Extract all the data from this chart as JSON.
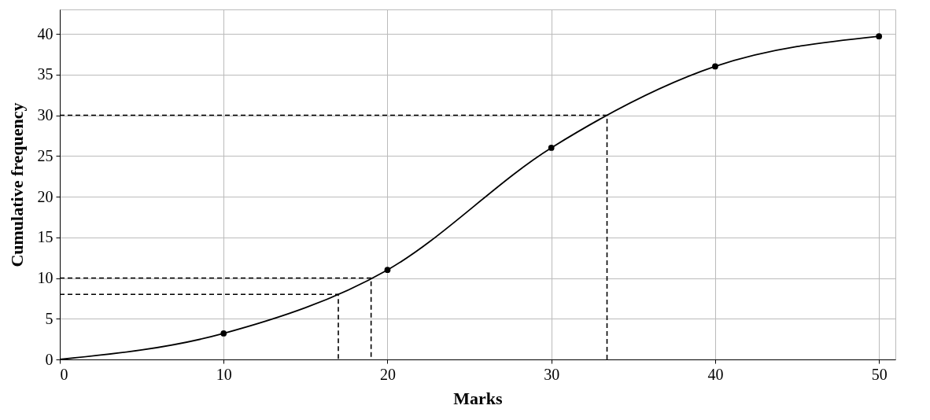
{
  "chart_data": {
    "type": "line",
    "xlabel": "Marks",
    "ylabel": "Cumulative frequency",
    "xlim": [
      0,
      51
    ],
    "ylim": [
      0,
      43
    ],
    "xticks": [
      0,
      10,
      20,
      30,
      40,
      50
    ],
    "yticks": [
      0,
      5,
      10,
      15,
      20,
      25,
      30,
      35,
      40
    ],
    "grid": true,
    "series": [
      {
        "color": "#000000",
        "line_style": "solid",
        "x": [
          0,
          10,
          20,
          30,
          40,
          50
        ],
        "values": [
          0,
          3.2,
          11,
          26,
          36,
          39.7
        ]
      },
      {
        "type": "scatter",
        "color": "#000000",
        "marker": "circle",
        "x": [
          10,
          20,
          30,
          40,
          50
        ],
        "values": [
          3.2,
          11,
          26,
          36,
          39.7
        ]
      },
      {
        "color": "#000000",
        "line_style": "dashed",
        "x": [
          0,
          33.4,
          33.4
        ],
        "values": [
          30,
          30,
          0
        ]
      },
      {
        "color": "#000000",
        "line_style": "dashed",
        "x": [
          0,
          19,
          19
        ],
        "values": [
          10,
          10,
          0
        ]
      },
      {
        "color": "#000000",
        "line_style": "dashed",
        "x": [
          0,
          17,
          17
        ],
        "values": [
          8,
          8,
          0
        ]
      }
    ]
  }
}
